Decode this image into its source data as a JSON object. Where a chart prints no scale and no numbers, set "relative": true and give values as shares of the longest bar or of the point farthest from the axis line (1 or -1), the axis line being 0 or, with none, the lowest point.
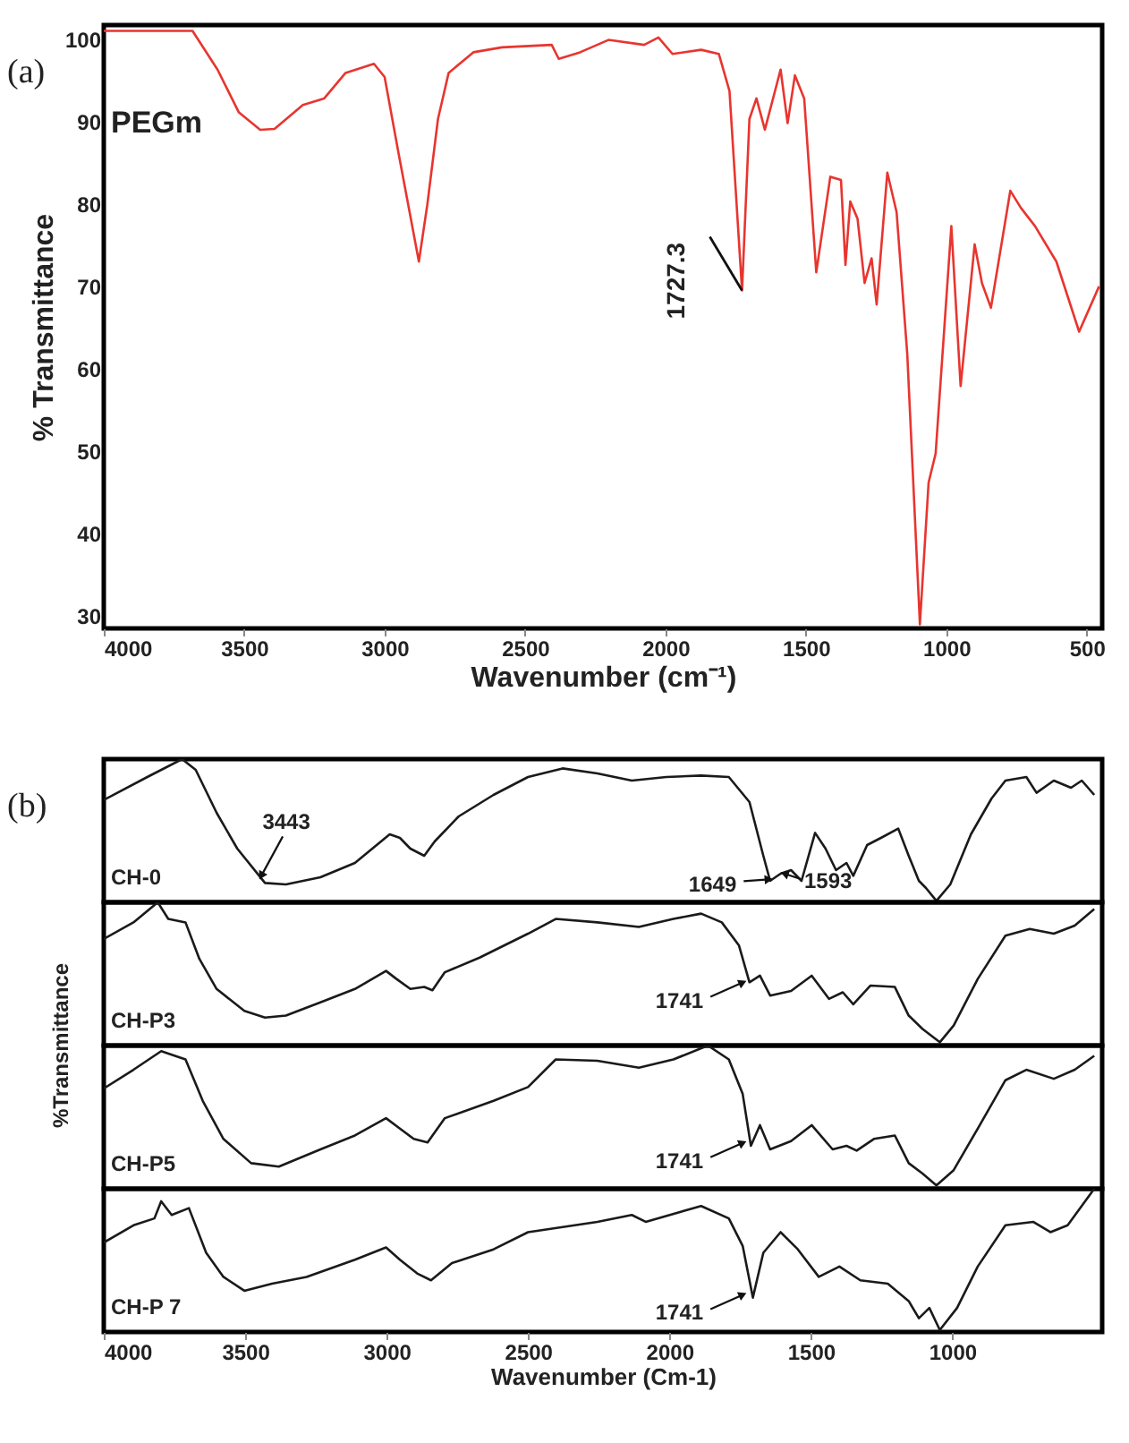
{
  "chart_data": [
    {
      "type": "line",
      "annotations": [
        "(a)",
        {
          "text": "1727.3",
          "x": 1727.3,
          "y": 69.5
        }
      ],
      "xlabel": "Wavenumber (cm⁻¹)",
      "ylabel": "% Transmittance",
      "xlim": [
        4000,
        445
      ],
      "xticks": [
        4000,
        3500,
        3000,
        2500,
        2000,
        1500,
        1000,
        500
      ],
      "ylim": [
        28.5,
        101.7
      ],
      "yticks": [
        30,
        40,
        50,
        60,
        70,
        80,
        90,
        100
      ],
      "x": [
        4000,
        3684,
        3595,
        3519,
        3443,
        3392,
        3291,
        3215,
        3139,
        3038,
        3000,
        2949,
        2911,
        2878,
        2848,
        2810,
        2772,
        2684,
        2582,
        2405,
        2380,
        2304,
        2203,
        2076,
        2025,
        1975,
        1873,
        1810,
        1772,
        1727.3,
        1701,
        1676,
        1646,
        1590,
        1565,
        1539,
        1506,
        1463,
        1413,
        1375,
        1359,
        1342,
        1316,
        1291,
        1266,
        1248,
        1210,
        1177,
        1139,
        1094,
        1063,
        1038,
        982,
        949,
        899,
        873,
        841,
        772,
        734,
        684,
        608,
        527,
        456
      ],
      "series": [
        {
          "name": "PEGm",
          "color": "#e8352f",
          "values": [
            101,
            101,
            96.3,
            91.1,
            89,
            89.1,
            92,
            92.8,
            95.9,
            97,
            95.4,
            85.9,
            79,
            73,
            79.9,
            90.3,
            95.9,
            98.4,
            99,
            99.3,
            97.6,
            98.4,
            99.9,
            99.3,
            100.2,
            98.2,
            98.7,
            98.2,
            93.7,
            69.5,
            90.3,
            92.8,
            89,
            96.3,
            89.8,
            95.6,
            92.8,
            71.7,
            83.3,
            82.9,
            72.6,
            80.3,
            78.2,
            70.4,
            73.4,
            67.8,
            83.8,
            79,
            61.8,
            29,
            46.2,
            49.7,
            77.3,
            57.9,
            75.1,
            70.4,
            67.4,
            81.6,
            79.5,
            77.3,
            73,
            64.5,
            70
          ]
        }
      ]
    },
    {
      "type": "line",
      "relative": true,
      "annotations": [
        "(b)",
        {
          "text": "3443",
          "x": 3443,
          "y": 0.185
        },
        {
          "text": "1649",
          "x": 1649,
          "y": 0.16
        },
        {
          "text": "1593",
          "x": 1593,
          "y": 0.2
        }
      ],
      "xlim": [
        4000,
        470
      ],
      "x": [
        4000,
        3846,
        3723,
        3675,
        3601,
        3528,
        3430,
        3356,
        3234,
        3112,
        2989,
        2953,
        2916,
        2867,
        2830,
        2745,
        2622,
        2500,
        2378,
        2255,
        2133,
        2011,
        1888,
        1790,
        1717,
        1668,
        1644,
        1607,
        1570,
        1533,
        1485,
        1448,
        1411,
        1374,
        1350,
        1301,
        1252,
        1191,
        1154,
        1118,
        1093,
        1056,
        1007,
        934,
        861,
        812,
        738,
        702,
        641,
        580,
        542,
        498
      ],
      "series": [
        {
          "name": "CH-0",
          "color": "#1a1a1a",
          "values": [
            0.715,
            0.875,
            1,
            0.925,
            0.625,
            0.375,
            0.135,
            0.125,
            0.175,
            0.275,
            0.475,
            0.45,
            0.375,
            0.325,
            0.425,
            0.6,
            0.75,
            0.875,
            0.935,
            0.9,
            0.85,
            0.875,
            0.885,
            0.875,
            0.7,
            0.325,
            0.15,
            0.2,
            0.225,
            0.15,
            0.485,
            0.375,
            0.225,
            0.275,
            0.185,
            0.4,
            0.45,
            0.515,
            0.325,
            0.15,
            0.1,
            0.01,
            0.125,
            0.475,
            0.725,
            0.85,
            0.875,
            0.765,
            0.85,
            0.8,
            0.85,
            0.75
          ]
        }
      ]
    },
    {
      "type": "line",
      "relative": true,
      "ylabel": "%Transmittance",
      "annotations": [
        {
          "text": "1741",
          "x": 1741,
          "y": 0.44
        }
      ],
      "xlim": [
        4000,
        470
      ],
      "x": [
        4000,
        3895,
        3809,
        3772,
        3711,
        3662,
        3601,
        3503,
        3430,
        3356,
        3234,
        3112,
        3002,
        2965,
        2916,
        2867,
        2838,
        2794,
        2671,
        2500,
        2402,
        2255,
        2108,
        1986,
        1888,
        1815,
        1754,
        1717,
        1680,
        1644,
        1570,
        1497,
        1436,
        1387,
        1350,
        1289,
        1203,
        1154,
        1105,
        1044,
        995,
        910,
        812,
        726,
        641,
        567,
        498
      ],
      "series": [
        {
          "name": "CH-P3",
          "color": "#1a1a1a",
          "values": [
            0.744,
            0.86,
            1,
            0.884,
            0.86,
            0.605,
            0.395,
            0.242,
            0.195,
            0.209,
            0.302,
            0.395,
            0.521,
            0.465,
            0.395,
            0.409,
            0.386,
            0.512,
            0.614,
            0.781,
            0.884,
            0.86,
            0.828,
            0.884,
            0.921,
            0.86,
            0.698,
            0.442,
            0.488,
            0.349,
            0.381,
            0.488,
            0.326,
            0.372,
            0.288,
            0.419,
            0.409,
            0.209,
            0.116,
            0.023,
            0.14,
            0.465,
            0.767,
            0.814,
            0.781,
            0.837,
            0.953
          ]
        }
      ]
    },
    {
      "type": "line",
      "relative": true,
      "annotations": [
        {
          "text": "1741",
          "x": 1741,
          "y": 0.32
        }
      ],
      "xlim": [
        4000,
        470
      ],
      "x": [
        4000,
        3895,
        3797,
        3711,
        3650,
        3577,
        3479,
        3381,
        3234,
        3112,
        3002,
        2953,
        2904,
        2855,
        2794,
        2622,
        2500,
        2402,
        2255,
        2108,
        1986,
        1864,
        1790,
        1741,
        1712,
        1680,
        1644,
        1570,
        1497,
        1423,
        1374,
        1338,
        1277,
        1203,
        1154,
        1105,
        1056,
        995,
        910,
        812,
        738,
        641,
        567,
        498
      ],
      "series": [
        {
          "name": "CH-P5",
          "color": "#1a1a1a",
          "values": [
            0.7,
            0.831,
            0.961,
            0.903,
            0.614,
            0.348,
            0.179,
            0.155,
            0.275,
            0.372,
            0.493,
            0.42,
            0.348,
            0.324,
            0.493,
            0.614,
            0.71,
            0.903,
            0.894,
            0.845,
            0.903,
            1,
            0.903,
            0.662,
            0.3,
            0.444,
            0.275,
            0.333,
            0.444,
            0.275,
            0.3,
            0.266,
            0.348,
            0.372,
            0.179,
            0.106,
            0.024,
            0.13,
            0.42,
            0.758,
            0.831,
            0.768,
            0.831,
            0.928
          ]
        }
      ]
    },
    {
      "type": "line",
      "relative": true,
      "tick_labels": "x",
      "xlabel": "Wavenumber (Cm-1)",
      "annotations": [
        {
          "text": "1741",
          "x": 1741,
          "y": 0.26
        }
      ],
      "xlim": [
        4000,
        470
      ],
      "xticks": [
        4000,
        3500,
        3000,
        2500,
        2000,
        1500,
        1000
      ],
      "x": [
        4000,
        3895,
        3821,
        3797,
        3760,
        3699,
        3638,
        3577,
        3503,
        3405,
        3283,
        3112,
        3002,
        2953,
        2892,
        2843,
        2769,
        2622,
        2500,
        2255,
        2133,
        2084,
        1888,
        1790,
        1741,
        1705,
        1668,
        1607,
        1546,
        1472,
        1399,
        1325,
        1228,
        1154,
        1118,
        1081,
        1044,
        983,
        910,
        812,
        714,
        653,
        592,
        498
      ],
      "series": [
        {
          "name": "CH-P 7",
          "color": "#1a1a1a",
          "values": [
            0.625,
            0.745,
            0.793,
            0.913,
            0.817,
            0.865,
            0.553,
            0.385,
            0.288,
            0.337,
            0.385,
            0.505,
            0.591,
            0.505,
            0.409,
            0.361,
            0.481,
            0.577,
            0.697,
            0.769,
            0.817,
            0.769,
            0.88,
            0.793,
            0.601,
            0.24,
            0.553,
            0.697,
            0.577,
            0.385,
            0.457,
            0.361,
            0.337,
            0.216,
            0.096,
            0.168,
            0.014,
            0.168,
            0.457,
            0.745,
            0.769,
            0.697,
            0.745,
            1
          ]
        }
      ]
    }
  ]
}
